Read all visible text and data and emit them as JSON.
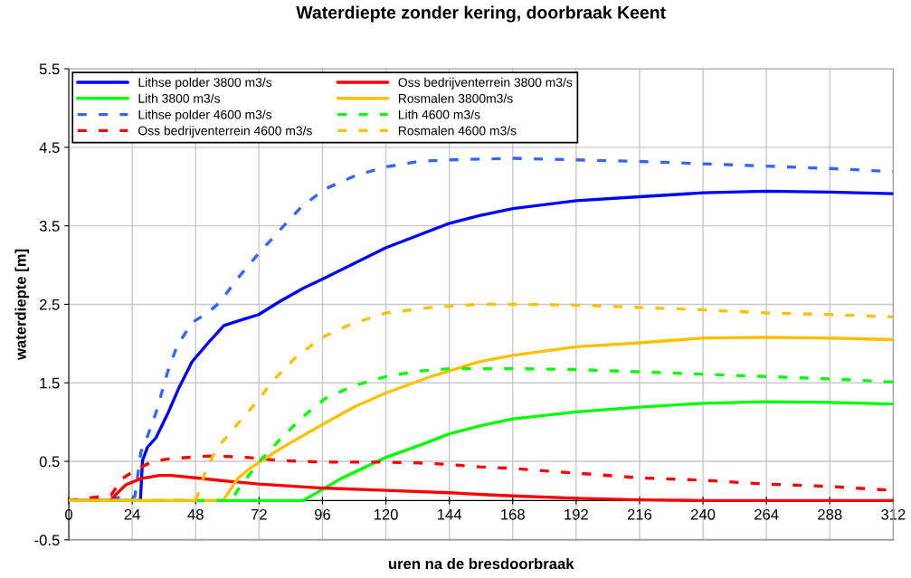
{
  "chart_data": {
    "type": "line",
    "title": "Waterdiepte zonder kering, doorbraak Keent",
    "xlabel": "uren na de bresdoorbraak",
    "ylabel": "waterdiepte [m]",
    "xlim": [
      0,
      312
    ],
    "xticks": [
      0,
      24,
      48,
      72,
      96,
      120,
      144,
      168,
      192,
      216,
      240,
      264,
      288,
      312
    ],
    "ylim": [
      -0.5,
      5.5
    ],
    "yticks": [
      -0.5,
      0.5,
      1.5,
      2.5,
      3.5,
      4.5,
      5.5
    ],
    "grid": true,
    "legend": "top left",
    "marker": "none",
    "series": [
      {
        "name": "Lithse polder 3800 m3/s",
        "color": "#0000ff",
        "line_style": "solid",
        "x": [
          0,
          27.1,
          27.9,
          29.8,
          33,
          37.6,
          41.6,
          46.7,
          52.5,
          58.7,
          66.2,
          71.9,
          80,
          89,
          95.9,
          119.9,
          143.9,
          155.4,
          168,
          192,
          216,
          240,
          264,
          288,
          312
        ],
        "values": [
          0,
          0,
          0.51,
          0.68,
          0.8,
          1.12,
          1.43,
          1.77,
          2.0,
          2.23,
          2.31,
          2.37,
          2.54,
          2.71,
          2.82,
          3.22,
          3.53,
          3.63,
          3.72,
          3.82,
          3.87,
          3.92,
          3.94,
          3.93,
          3.91
        ]
      },
      {
        "name": "Lith 3800 m3/s",
        "color": "#00ff00",
        "line_style": "solid",
        "x": [
          0,
          88.5,
          91.3,
          103,
          120,
          132.5,
          144,
          155.4,
          168,
          192,
          216,
          240,
          264,
          288,
          312
        ],
        "values": [
          0,
          0,
          0.05,
          0.28,
          0.55,
          0.7,
          0.85,
          0.95,
          1.04,
          1.13,
          1.19,
          1.24,
          1.26,
          1.25,
          1.23
        ]
      },
      {
        "name": "Lithse polder 4600 m3/s",
        "color": "#3366ff",
        "line_style": "dashed",
        "x": [
          0,
          25,
          27.3,
          29.8,
          33,
          35.3,
          37.6,
          41,
          46.7,
          52.5,
          57,
          63.9,
          71.9,
          80,
          88,
          97,
          108.5,
          120,
          132.5,
          144,
          156.5,
          168,
          192,
          216,
          240,
          264,
          288,
          312
        ],
        "values": [
          0,
          0.05,
          0.62,
          0.82,
          1.12,
          1.39,
          1.66,
          1.97,
          2.27,
          2.39,
          2.52,
          2.83,
          3.15,
          3.45,
          3.74,
          3.97,
          4.14,
          4.25,
          4.32,
          4.34,
          4.35,
          4.36,
          4.34,
          4.32,
          4.29,
          4.26,
          4.23,
          4.19
        ]
      },
      {
        "name": "Oss bedrijventerrein 4600 m3/s",
        "color": "#ff0000",
        "line_style": "dashed",
        "x": [
          0,
          16,
          20.3,
          26.2,
          31.9,
          37.6,
          49,
          54.7,
          67.3,
          80,
          97,
          120,
          132.5,
          144,
          155.4,
          168,
          192,
          216,
          240,
          264,
          288,
          312
        ],
        "values": [
          0,
          0.07,
          0.28,
          0.41,
          0.5,
          0.53,
          0.56,
          0.57,
          0.55,
          0.51,
          0.49,
          0.49,
          0.48,
          0.46,
          0.43,
          0.41,
          0.35,
          0.29,
          0.26,
          0.21,
          0.18,
          0.13
        ]
      },
      {
        "name": "Oss bedrijventerrein 3800 m3/s",
        "color": "#ff0000",
        "line_style": "solid",
        "x": [
          0,
          15.9,
          18.2,
          21.6,
          27.3,
          34.2,
          38.7,
          47.9,
          59.3,
          71.9,
          86.7,
          96,
          120,
          144,
          155.4,
          168,
          192,
          216,
          240,
          312
        ],
        "values": [
          0,
          0,
          0.09,
          0.2,
          0.28,
          0.32,
          0.32,
          0.29,
          0.25,
          0.21,
          0.18,
          0.16,
          0.13,
          0.1,
          0.08,
          0.06,
          0.03,
          0.01,
          0,
          0
        ]
      },
      {
        "name": "Rosmalen 3800m3/s",
        "color": "#ffc000",
        "line_style": "solid",
        "x": [
          0,
          58.4,
          63.9,
          68.5,
          80,
          96,
          108.5,
          120,
          137,
          155.4,
          168,
          192,
          216,
          240,
          264,
          288,
          312
        ],
        "values": [
          0,
          0,
          0.28,
          0.41,
          0.66,
          0.97,
          1.2,
          1.37,
          1.58,
          1.77,
          1.85,
          1.96,
          2.01,
          2.07,
          2.08,
          2.07,
          2.05
        ]
      },
      {
        "name": "Lith 4600 m3/s",
        "color": "#00ff00",
        "line_style": "dashed",
        "x": [
          0,
          61.6,
          63.9,
          71.9,
          80,
          88,
          97,
          108.5,
          120,
          132.5,
          144,
          155.4,
          168,
          192,
          216,
          240,
          264,
          288,
          312
        ],
        "values": [
          0,
          0,
          0.13,
          0.49,
          0.78,
          1.05,
          1.3,
          1.47,
          1.58,
          1.65,
          1.68,
          1.68,
          1.68,
          1.67,
          1.64,
          1.61,
          1.58,
          1.55,
          1.51
        ]
      },
      {
        "name": "Rosmalen 4600 m3/s",
        "color": "#ffc000",
        "line_style": "dashed",
        "x": [
          0,
          48,
          49,
          51.9,
          55.9,
          62.7,
          70.7,
          77.6,
          86.7,
          96,
          107,
          120,
          137,
          155.4,
          168,
          192,
          216,
          240,
          264,
          288,
          312
        ],
        "values": [
          0,
          0,
          0.09,
          0.39,
          0.66,
          0.93,
          1.24,
          1.54,
          1.85,
          2.08,
          2.25,
          2.39,
          2.46,
          2.5,
          2.5,
          2.49,
          2.46,
          2.43,
          2.39,
          2.37,
          2.34
        ]
      }
    ]
  }
}
